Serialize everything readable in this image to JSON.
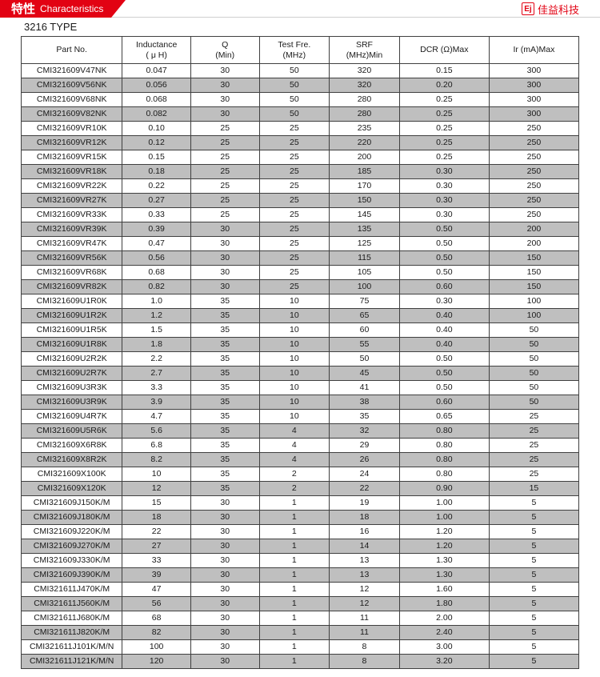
{
  "header": {
    "cn": "特性",
    "en": "Characteristics",
    "brand": "佳益科技",
    "brand_icon": "Ej"
  },
  "type_title": "3216 TYPE",
  "columns": [
    {
      "line1": "Part No.",
      "line2": ""
    },
    {
      "line1": "Inductance",
      "line2": "( μ H)"
    },
    {
      "line1": "Q",
      "line2": "(Min)"
    },
    {
      "line1": "Test Fre.",
      "line2": "(MHz)"
    },
    {
      "line1": "SRF",
      "line2": "(MHz)Min"
    },
    {
      "line1": "DCR (Ω)Max",
      "line2": ""
    },
    {
      "line1": "Ir (mA)Max",
      "line2": ""
    }
  ],
  "rows": [
    [
      "CMI321609V47NK",
      "0.047",
      "30",
      "50",
      "320",
      "0.15",
      "300"
    ],
    [
      "CMI321609V56NK",
      "0.056",
      "30",
      "50",
      "320",
      "0.20",
      "300"
    ],
    [
      "CMI321609V68NK",
      "0.068",
      "30",
      "50",
      "280",
      "0.25",
      "300"
    ],
    [
      "CMI321609V82NK",
      "0.082",
      "30",
      "50",
      "280",
      "0.25",
      "300"
    ],
    [
      "CMI321609VR10K",
      "0.10",
      "25",
      "25",
      "235",
      "0.25",
      "250"
    ],
    [
      "CMI321609VR12K",
      "0.12",
      "25",
      "25",
      "220",
      "0.25",
      "250"
    ],
    [
      "CMI321609VR15K",
      "0.15",
      "25",
      "25",
      "200",
      "0.25",
      "250"
    ],
    [
      "CMI321609VR18K",
      "0.18",
      "25",
      "25",
      "185",
      "0.30",
      "250"
    ],
    [
      "CMI321609VR22K",
      "0.22",
      "25",
      "25",
      "170",
      "0.30",
      "250"
    ],
    [
      "CMI321609VR27K",
      "0.27",
      "25",
      "25",
      "150",
      "0.30",
      "250"
    ],
    [
      "CMI321609VR33K",
      "0.33",
      "25",
      "25",
      "145",
      "0.30",
      "250"
    ],
    [
      "CMI321609VR39K",
      "0.39",
      "30",
      "25",
      "135",
      "0.50",
      "200"
    ],
    [
      "CMI321609VR47K",
      "0.47",
      "30",
      "25",
      "125",
      "0.50",
      "200"
    ],
    [
      "CMI321609VR56K",
      "0.56",
      "30",
      "25",
      "115",
      "0.50",
      "150"
    ],
    [
      "CMI321609VR68K",
      "0.68",
      "30",
      "25",
      "105",
      "0.50",
      "150"
    ],
    [
      "CMI321609VR82K",
      "0.82",
      "30",
      "25",
      "100",
      "0.60",
      "150"
    ],
    [
      "CMI321609U1R0K",
      "1.0",
      "35",
      "10",
      "75",
      "0.30",
      "100"
    ],
    [
      "CMI321609U1R2K",
      "1.2",
      "35",
      "10",
      "65",
      "0.40",
      "100"
    ],
    [
      "CMI321609U1R5K",
      "1.5",
      "35",
      "10",
      "60",
      "0.40",
      "50"
    ],
    [
      "CMI321609U1R8K",
      "1.8",
      "35",
      "10",
      "55",
      "0.40",
      "50"
    ],
    [
      "CMI321609U2R2K",
      "2.2",
      "35",
      "10",
      "50",
      "0.50",
      "50"
    ],
    [
      "CMI321609U2R7K",
      "2.7",
      "35",
      "10",
      "45",
      "0.50",
      "50"
    ],
    [
      "CMI321609U3R3K",
      "3.3",
      "35",
      "10",
      "41",
      "0.50",
      "50"
    ],
    [
      "CMI321609U3R9K",
      "3.9",
      "35",
      "10",
      "38",
      "0.60",
      "50"
    ],
    [
      "CMI321609U4R7K",
      "4.7",
      "35",
      "10",
      "35",
      "0.65",
      "25"
    ],
    [
      "CMI321609U5R6K",
      "5.6",
      "35",
      "4",
      "32",
      "0.80",
      "25"
    ],
    [
      "CMI321609X6R8K",
      "6.8",
      "35",
      "4",
      "29",
      "0.80",
      "25"
    ],
    [
      "CMI321609X8R2K",
      "8.2",
      "35",
      "4",
      "26",
      "0.80",
      "25"
    ],
    [
      "CMI321609X100K",
      "10",
      "35",
      "2",
      "24",
      "0.80",
      "25"
    ],
    [
      "CMI321609X120K",
      "12",
      "35",
      "2",
      "22",
      "0.90",
      "15"
    ],
    [
      "CMI321609J150K/M",
      "15",
      "30",
      "1",
      "19",
      "1.00",
      "5"
    ],
    [
      "CMI321609J180K/M",
      "18",
      "30",
      "1",
      "18",
      "1.00",
      "5"
    ],
    [
      "CMI321609J220K/M",
      "22",
      "30",
      "1",
      "16",
      "1.20",
      "5"
    ],
    [
      "CMI321609J270K/M",
      "27",
      "30",
      "1",
      "14",
      "1.20",
      "5"
    ],
    [
      "CMI321609J330K/M",
      "33",
      "30",
      "1",
      "13",
      "1.30",
      "5"
    ],
    [
      "CMI321609J390K/M",
      "39",
      "30",
      "1",
      "13",
      "1.30",
      "5"
    ],
    [
      "CMI321611J470K/M",
      "47",
      "30",
      "1",
      "12",
      "1.60",
      "5"
    ],
    [
      "CMI321611J560K/M",
      "56",
      "30",
      "1",
      "12",
      "1.80",
      "5"
    ],
    [
      "CMI321611J680K/M",
      "68",
      "30",
      "1",
      "11",
      "2.00",
      "5"
    ],
    [
      "CMI321611J820K/M",
      "82",
      "30",
      "1",
      "11",
      "2.40",
      "5"
    ],
    [
      "CMI321611J101K/M/N",
      "100",
      "30",
      "1",
      "8",
      "3.00",
      "5"
    ],
    [
      "CMI321611J121K/M/N",
      "120",
      "30",
      "1",
      "8",
      "3.20",
      "5"
    ]
  ],
  "colors": {
    "accent": "#e20213",
    "shade": "#bfbfbf",
    "border": "#404040",
    "text": "#1a1a1a"
  }
}
